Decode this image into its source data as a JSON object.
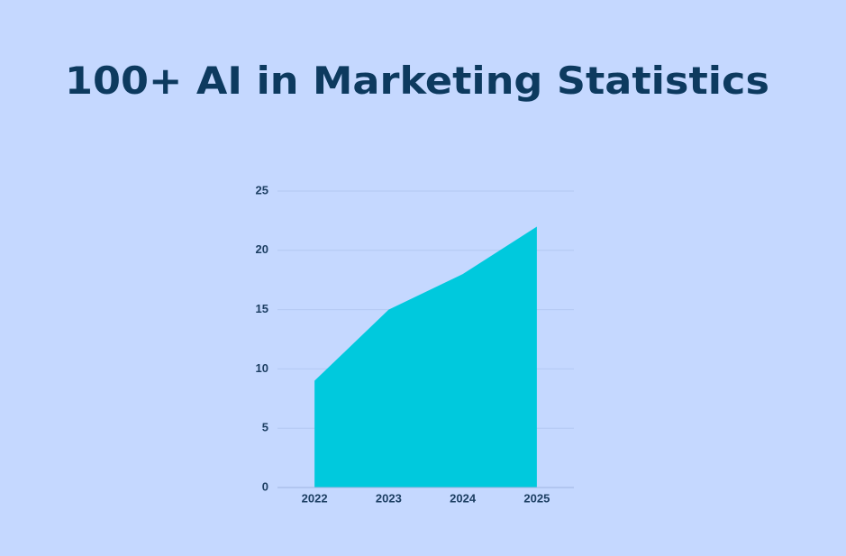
{
  "chart_data": {
    "type": "area",
    "title": "100+ AI in Marketing Statistics",
    "categories": [
      "2022",
      "2023",
      "2024",
      "2025"
    ],
    "values": [
      9,
      15,
      18,
      22
    ],
    "color": "#00c9dd",
    "ylim": [
      0,
      25
    ],
    "yticks": [
      0,
      5,
      10,
      15,
      20,
      25
    ],
    "grid": true
  }
}
